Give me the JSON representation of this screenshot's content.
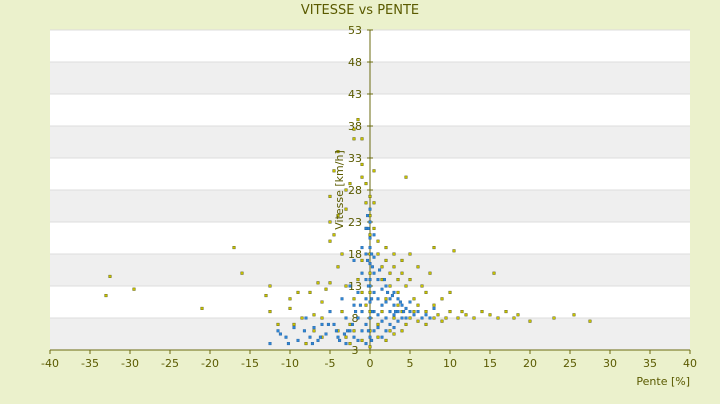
{
  "chart_data": {
    "type": "scatter",
    "title": "VITESSE vs PENTE",
    "xlabel": "Pente [%]",
    "ylabel": "Vitesse [km/h]",
    "xlim": [
      -40,
      40
    ],
    "ylim": [
      3,
      53
    ],
    "xticks": [
      -40,
      -35,
      -30,
      -25,
      -20,
      -15,
      -10,
      -5,
      0,
      5,
      10,
      15,
      20,
      25,
      30,
      35,
      40
    ],
    "yticks": [
      3,
      8,
      13,
      18,
      23,
      28,
      33,
      38,
      43,
      48,
      53
    ],
    "grid": "horizontal alternating bands",
    "legend": "none",
    "colors": {
      "series_yellow": "#c8c400",
      "series_blue": "#2e86d6",
      "axis_text": "#5a5a00",
      "band": "#efefef"
    },
    "series": [
      {
        "points": [
          [
            -33,
            11.5
          ],
          [
            -32.5,
            14.5
          ],
          [
            -29.5,
            12.5
          ],
          [
            -21,
            9.5
          ],
          [
            -17,
            19
          ],
          [
            -16,
            15
          ],
          [
            -12.5,
            13
          ],
          [
            -12.5,
            9
          ],
          [
            -13,
            11.5
          ],
          [
            -11.5,
            7
          ],
          [
            -10,
            11
          ],
          [
            -10,
            9.5
          ],
          [
            -9,
            12
          ],
          [
            -9.5,
            7
          ],
          [
            -8.5,
            8
          ],
          [
            -7.5,
            12
          ],
          [
            -7,
            8.5
          ],
          [
            -7,
            6
          ],
          [
            -6.5,
            13.5
          ],
          [
            -6,
            10.5
          ],
          [
            -6,
            8
          ],
          [
            -5.5,
            12.5
          ],
          [
            -5,
            13.5
          ],
          [
            -5,
            20
          ],
          [
            -5,
            23
          ],
          [
            -4.5,
            21
          ],
          [
            -4,
            24
          ],
          [
            -4,
            16
          ],
          [
            -5,
            27
          ],
          [
            -4.5,
            31
          ],
          [
            -4,
            34
          ],
          [
            -3.5,
            18
          ],
          [
            -3,
            25
          ],
          [
            -3,
            28
          ],
          [
            -2.5,
            29
          ],
          [
            -2,
            36
          ],
          [
            -2,
            37.5
          ],
          [
            -1.5,
            39
          ],
          [
            -1,
            36
          ],
          [
            -1,
            32
          ],
          [
            -1,
            30
          ],
          [
            -0.5,
            29
          ],
          [
            -0.5,
            26
          ],
          [
            -0.5,
            22
          ],
          [
            0,
            27
          ],
          [
            0,
            24
          ],
          [
            0.5,
            31
          ],
          [
            0.5,
            26
          ],
          [
            0.5,
            22
          ],
          [
            1,
            20
          ],
          [
            1,
            18
          ],
          [
            1.5,
            16
          ],
          [
            1.5,
            14
          ],
          [
            2,
            19
          ],
          [
            2,
            17
          ],
          [
            2.5,
            15
          ],
          [
            2.5,
            13
          ],
          [
            3,
            18
          ],
          [
            3,
            16
          ],
          [
            3.5,
            14
          ],
          [
            3.5,
            12
          ],
          [
            4,
            17
          ],
          [
            4,
            15
          ],
          [
            4.5,
            13
          ],
          [
            4.5,
            30
          ],
          [
            5,
            18
          ],
          [
            5,
            14
          ],
          [
            5.5,
            11
          ],
          [
            6,
            16
          ],
          [
            6,
            10
          ],
          [
            6.5,
            13
          ],
          [
            7,
            9
          ],
          [
            7,
            12
          ],
          [
            7.5,
            15
          ],
          [
            8,
            10
          ],
          [
            8,
            19
          ],
          [
            8.5,
            8.5
          ],
          [
            9,
            11
          ],
          [
            9.5,
            8
          ],
          [
            10,
            9
          ],
          [
            10,
            12
          ],
          [
            10.5,
            18.5
          ],
          [
            11,
            8
          ],
          [
            11.5,
            9
          ],
          [
            12,
            8.5
          ],
          [
            13,
            8
          ],
          [
            14,
            9
          ],
          [
            15,
            8.5
          ],
          [
            15.5,
            15
          ],
          [
            16,
            8
          ],
          [
            17,
            9
          ],
          [
            18,
            8
          ],
          [
            18.5,
            8.5
          ],
          [
            20,
            7.5
          ],
          [
            23,
            8
          ],
          [
            25.5,
            8.5
          ],
          [
            27.5,
            7.5
          ],
          [
            -3,
            5
          ],
          [
            -2,
            6
          ],
          [
            -1.5,
            8
          ],
          [
            -1,
            12
          ],
          [
            -0.5,
            10
          ],
          [
            1,
            7
          ],
          [
            1.5,
            9
          ],
          [
            2,
            11
          ],
          [
            2.5,
            6
          ],
          [
            3,
            8
          ],
          [
            3.5,
            10
          ],
          [
            4,
            9
          ],
          [
            4.5,
            7
          ],
          [
            5,
            8
          ],
          [
            5.5,
            9
          ],
          [
            6,
            7.5
          ],
          [
            7,
            7
          ],
          [
            8,
            8
          ],
          [
            9,
            7.5
          ],
          [
            -2.5,
            4
          ],
          [
            -4,
            6
          ],
          [
            -6,
            5
          ],
          [
            -8,
            4
          ],
          [
            1,
            5
          ],
          [
            2,
            4.5
          ],
          [
            3,
            5.5
          ],
          [
            4,
            6
          ],
          [
            -1,
            4.5
          ],
          [
            0,
            3.5
          ],
          [
            0,
            6
          ],
          [
            0,
            9
          ],
          [
            0,
            12
          ],
          [
            0,
            15
          ],
          [
            0,
            18
          ],
          [
            0,
            21
          ],
          [
            -1,
            17
          ],
          [
            -1.5,
            14
          ],
          [
            -2,
            11
          ],
          [
            -3,
            13
          ],
          [
            -3.5,
            9
          ],
          [
            -2.5,
            7
          ]
        ]
      },
      {
        "points": [
          [
            -12.5,
            4
          ],
          [
            -11.5,
            6
          ],
          [
            -10.5,
            5
          ],
          [
            -9.5,
            6.5
          ],
          [
            -9,
            4.5
          ],
          [
            -8,
            8
          ],
          [
            -7.5,
            5
          ],
          [
            -7,
            6.5
          ],
          [
            -6.5,
            4.5
          ],
          [
            -6,
            7
          ],
          [
            -5.5,
            5.5
          ],
          [
            -5,
            9
          ],
          [
            -4.5,
            7
          ],
          [
            -4,
            5
          ],
          [
            -3.5,
            11
          ],
          [
            -3,
            8
          ],
          [
            -3,
            4
          ],
          [
            -2.5,
            13
          ],
          [
            -2.5,
            6
          ],
          [
            -2,
            10
          ],
          [
            -2,
            5
          ],
          [
            -2,
            17
          ],
          [
            -1.5,
            8
          ],
          [
            -1.5,
            12
          ],
          [
            -1.5,
            4.5
          ],
          [
            -1,
            15
          ],
          [
            -1,
            9
          ],
          [
            -1,
            6
          ],
          [
            -1,
            19
          ],
          [
            -0.5,
            22
          ],
          [
            -0.5,
            18
          ],
          [
            -0.5,
            14
          ],
          [
            -0.5,
            11
          ],
          [
            -0.5,
            7
          ],
          [
            -0.5,
            4
          ],
          [
            0,
            25
          ],
          [
            0,
            23
          ],
          [
            0,
            20.5
          ],
          [
            0,
            19
          ],
          [
            0,
            16.5
          ],
          [
            0,
            14
          ],
          [
            0,
            13
          ],
          [
            0,
            10.5
          ],
          [
            0,
            8
          ],
          [
            0,
            5
          ],
          [
            0.5,
            21
          ],
          [
            0.5,
            17.5
          ],
          [
            0.5,
            15
          ],
          [
            0.5,
            12
          ],
          [
            0.5,
            9
          ],
          [
            0.5,
            6
          ],
          [
            1,
            14
          ],
          [
            1,
            11
          ],
          [
            1,
            8.5
          ],
          [
            1,
            6.5
          ],
          [
            1.5,
            12.5
          ],
          [
            1.5,
            10
          ],
          [
            1.5,
            7.5
          ],
          [
            1.5,
            5
          ],
          [
            2,
            13
          ],
          [
            2,
            10.5
          ],
          [
            2,
            8
          ],
          [
            2,
            6
          ],
          [
            2.5,
            11
          ],
          [
            2.5,
            9
          ],
          [
            2.5,
            7
          ],
          [
            3,
            12
          ],
          [
            3,
            10
          ],
          [
            3,
            8.5
          ],
          [
            3,
            6.5
          ],
          [
            3.5,
            11
          ],
          [
            3.5,
            9
          ],
          [
            3.5,
            7.5
          ],
          [
            4,
            10
          ],
          [
            4,
            8
          ],
          [
            4.5,
            9.5
          ],
          [
            4.5,
            8
          ],
          [
            5,
            10.5
          ],
          [
            5,
            9
          ],
          [
            5.5,
            8.5
          ],
          [
            6,
            9
          ],
          [
            6.5,
            8
          ],
          [
            7,
            8.5
          ],
          [
            7.5,
            8
          ],
          [
            8,
            9.5
          ],
          [
            -0.3,
            24
          ],
          [
            -0.2,
            22
          ],
          [
            0.2,
            18
          ],
          [
            0.3,
            16
          ],
          [
            -0.3,
            17
          ],
          [
            -0.2,
            13
          ],
          [
            0.2,
            11
          ],
          [
            0.3,
            9
          ],
          [
            -0.2,
            6
          ],
          [
            0.2,
            4.5
          ],
          [
            1.2,
            15.5
          ],
          [
            1.8,
            14
          ],
          [
            2.2,
            12
          ],
          [
            2.8,
            11.5
          ],
          [
            3.2,
            9
          ],
          [
            3.8,
            10.5
          ],
          [
            4.2,
            9
          ],
          [
            -1.2,
            10
          ],
          [
            -1.8,
            9
          ],
          [
            -2.2,
            7
          ],
          [
            -2.8,
            6
          ],
          [
            -3.2,
            5.5
          ],
          [
            -3.8,
            4.5
          ],
          [
            -4.2,
            6
          ],
          [
            -5.2,
            7
          ],
          [
            -6.2,
            5
          ],
          [
            -7.2,
            4
          ],
          [
            -8.2,
            6
          ],
          [
            -10.2,
            4
          ],
          [
            -11.2,
            5.5
          ]
        ]
      }
    ]
  }
}
